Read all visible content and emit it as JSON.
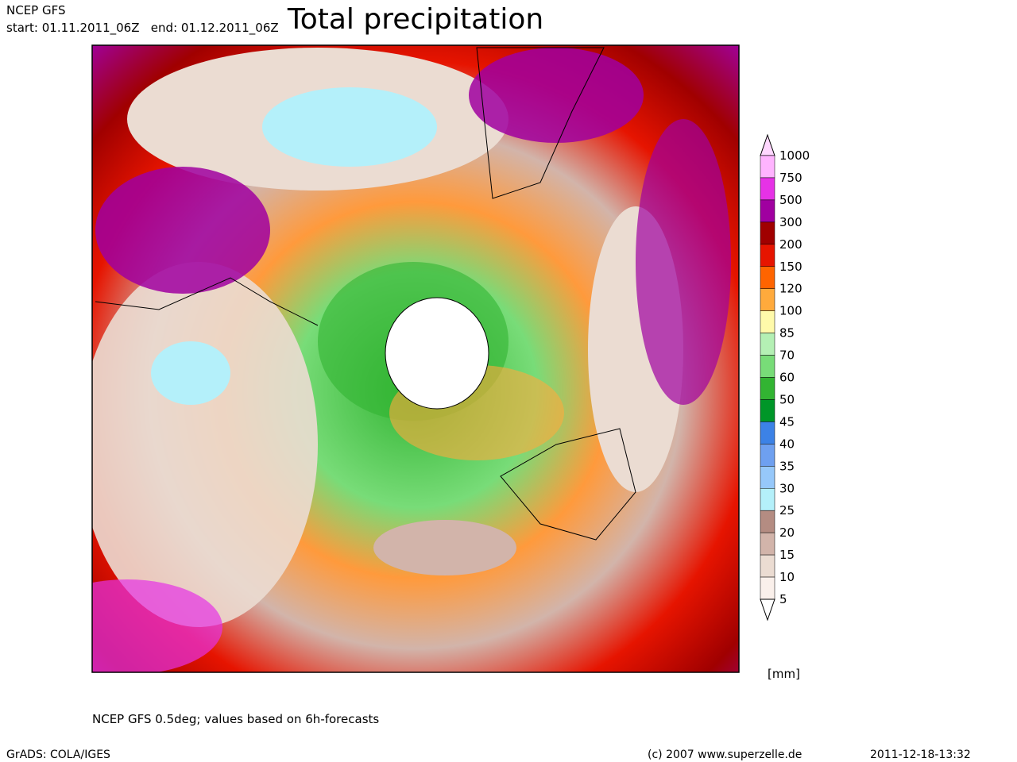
{
  "header": {
    "model": "NCEP GFS",
    "period": "start: 01.11.2011_06Z   end: 01.12.2011_06Z",
    "title": "Total precipitation"
  },
  "legend": {
    "levels": [
      1000,
      750,
      500,
      300,
      200,
      150,
      120,
      100,
      85,
      70,
      60,
      50,
      45,
      40,
      35,
      30,
      25,
      20,
      15,
      10,
      5
    ],
    "colors": [
      "#ffb4ff",
      "#e632e6",
      "#a000a0",
      "#a00000",
      "#e61400",
      "#ff6400",
      "#ffaa3c",
      "#fffaaa",
      "#b4f0b4",
      "#78dc78",
      "#32b432",
      "#009628",
      "#3c82e6",
      "#6ea0f0",
      "#96c8fa",
      "#b4f0fa",
      "#b48c82",
      "#d2b4aa",
      "#ebdcd2",
      "#faf0eb"
    ],
    "over_color": "#ffd7ff",
    "under_color": "#ffffff",
    "unit": "[mm]"
  },
  "footer": {
    "note": "NCEP GFS 0.5deg; values based on 6h-forecasts",
    "software": "GrADS: COLA/IGES",
    "copyright": "(c) 2007 www.superzelle.de",
    "timestamp": "2011-12-18-13:32"
  }
}
